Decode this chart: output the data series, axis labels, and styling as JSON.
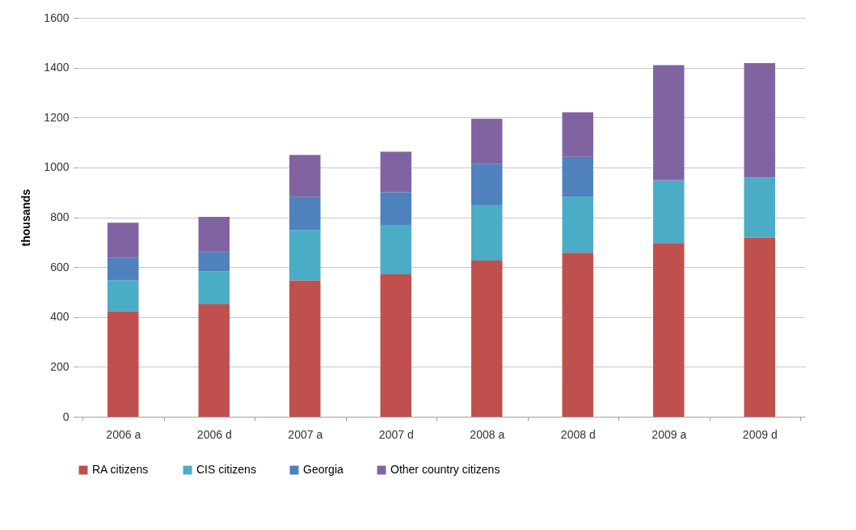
{
  "chart_data": {
    "type": "bar",
    "stacked": true,
    "ylabel": "thousands",
    "categories": [
      "2006 a",
      "2006 d",
      "2007 a",
      "2007 d",
      "2008 a",
      "2008 d",
      "2009 a",
      "2009 d"
    ],
    "series": [
      {
        "name": "RA citizens",
        "color": "#c0504d",
        "values": [
          423,
          451,
          547,
          571,
          626,
          658,
          697,
          718
        ]
      },
      {
        "name": "CIS citizens",
        "color": "#4bacc6",
        "values": [
          125,
          132,
          201,
          198,
          224,
          224,
          248,
          242
        ]
      },
      {
        "name": "Georgia",
        "color": "#4f81bd",
        "values": [
          89,
          78,
          134,
          132,
          165,
          161,
          4,
          null
        ]
      },
      {
        "name": "Other country citizens",
        "color": "#8064a2",
        "values": [
          141,
          141,
          168,
          162,
          180,
          178,
          461,
          458
        ]
      }
    ],
    "ylim": [
      0,
      1600
    ],
    "yticks": [
      0,
      200,
      400,
      600,
      800,
      1000,
      1200,
      1400,
      1600
    ],
    "grid": "y",
    "legend": "bottom"
  }
}
